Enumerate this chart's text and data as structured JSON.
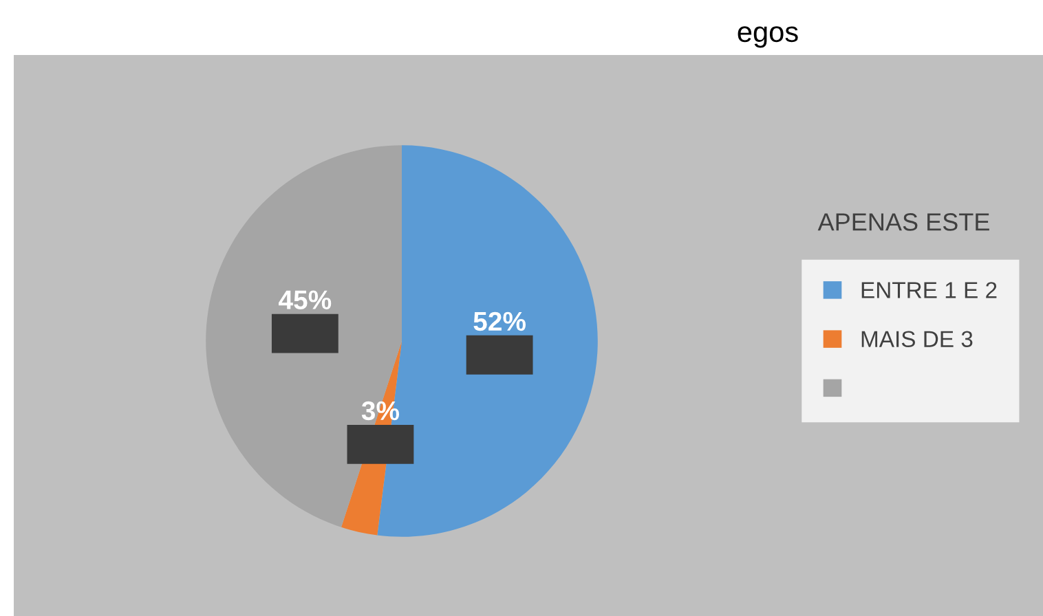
{
  "chart_data": {
    "type": "pie",
    "title": "egos",
    "legend_title": "APENAS ESTE",
    "categories": [
      "ENTRE 1 E 2",
      "MAIS DE 3",
      null
    ],
    "values": [
      52,
      3,
      45
    ],
    "colors": [
      "#5b9bd5",
      "#ed7d31",
      "#a5a5a5"
    ],
    "value_labels": [
      "52%",
      "3%",
      "45%"
    ],
    "legend": "right"
  }
}
